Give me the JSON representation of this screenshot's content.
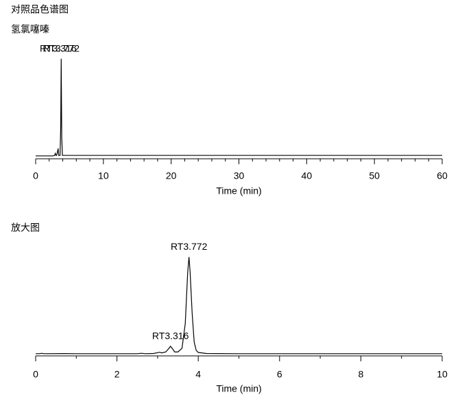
{
  "header": "对照品色谱图",
  "chart_data": [
    {
      "type": "line",
      "title": "氢氯噻嗪",
      "xlabel": "Time (min)",
      "xlim": [
        0,
        60
      ],
      "xticks": [
        0,
        10,
        20,
        30,
        40,
        50,
        60
      ],
      "minor_xticks": [
        2,
        4,
        6,
        8,
        12,
        14,
        16,
        18,
        22,
        24,
        26,
        28,
        32,
        34,
        36,
        38,
        42,
        44,
        46,
        48,
        52,
        54,
        56,
        58
      ],
      "ylim": [
        0,
        100
      ],
      "series": [
        {
          "color": "#000000",
          "x": [
            0,
            2.5,
            2.8,
            2.9,
            3.0,
            3.1,
            3.3,
            3.316,
            3.4,
            3.6,
            3.7,
            3.772,
            3.85,
            3.95,
            4.2,
            10,
            60
          ],
          "values": [
            1.5,
            1.5,
            2,
            4,
            2,
            2,
            8,
            9,
            2,
            2,
            30,
            98,
            20,
            2,
            2,
            2,
            2
          ]
        }
      ],
      "annotations": [
        {
          "text": "RT3.316",
          "x": 3.316
        },
        {
          "text": "RT3.772",
          "x": 3.772
        }
      ]
    },
    {
      "type": "line",
      "title": "放大图",
      "xlabel": "Time (min)",
      "xlim": [
        0,
        10
      ],
      "xticks": [
        0,
        2,
        4,
        6,
        8,
        10
      ],
      "minor_xticks": [
        1,
        3,
        5,
        7,
        9
      ],
      "ylim": [
        0,
        100
      ],
      "series": [
        {
          "color": "#000000",
          "x": [
            0,
            0.1,
            0.15,
            0.2,
            0.7,
            1,
            2,
            2.5,
            2.6,
            2.7,
            2.9,
            3.0,
            3.05,
            3.1,
            3.2,
            3.28,
            3.316,
            3.36,
            3.42,
            3.5,
            3.6,
            3.68,
            3.74,
            3.772,
            3.8,
            3.85,
            3.9,
            3.95,
            4.0,
            4.2,
            5,
            10
          ],
          "values": [
            0.8,
            0.8,
            1.2,
            0.8,
            0.9,
            0.8,
            0.8,
            0.8,
            1.2,
            0.8,
            1.0,
            1.8,
            2.2,
            1.6,
            2.5,
            6,
            8,
            6,
            2.5,
            2.5,
            6,
            30,
            80,
            95,
            80,
            40,
            12,
            4,
            2,
            1,
            0.8,
            0.8
          ]
        }
      ],
      "annotations": [
        {
          "text": "RT3.316",
          "x": 3.316
        },
        {
          "text": "RT3.772",
          "x": 3.772
        }
      ]
    }
  ]
}
